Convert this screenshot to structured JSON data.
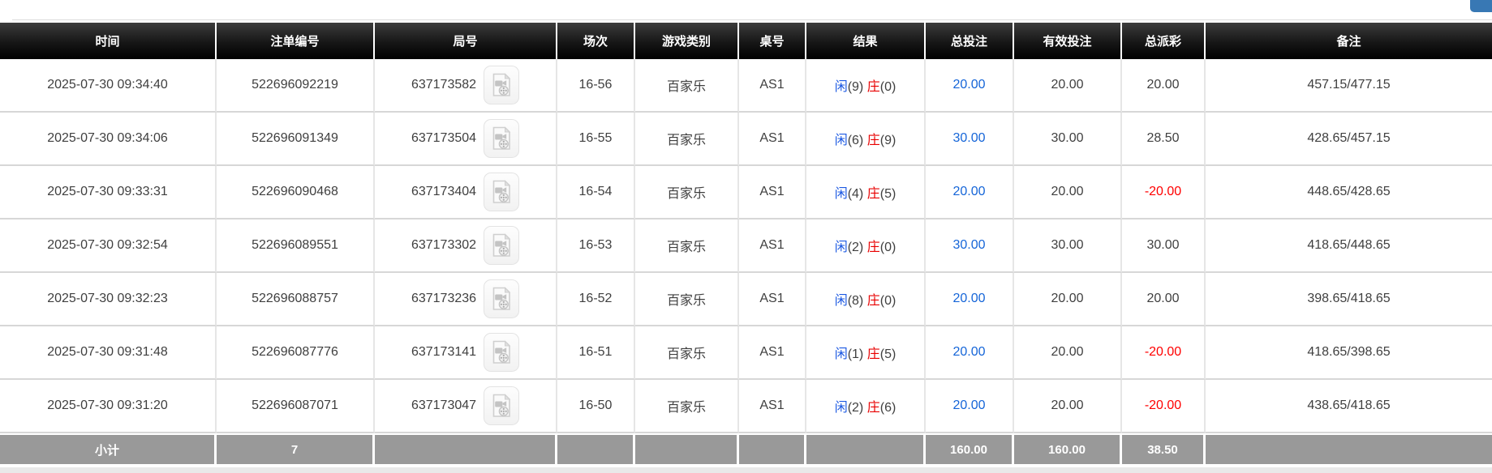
{
  "colors": {
    "player_blue": "#1b58e2",
    "banker_red": "#e80000",
    "total_bet_blue": "#1565d8",
    "negative_red": "#ff0000",
    "footer_bg": "#999999",
    "corner_blue": "#3878b4"
  },
  "icons": {
    "video_replay": "video-file-icon"
  },
  "table": {
    "columns": [
      "时间",
      "注单编号",
      "局号",
      "场次",
      "游戏类别",
      "桌号",
      "结果",
      "总投注",
      "有效投注",
      "总派彩",
      "备注"
    ],
    "result_labels": {
      "player": "闲",
      "banker": "庄"
    },
    "rows": [
      {
        "time": "2025-07-30 09:34:40",
        "bet_id": "522696092219",
        "round_id": "637173582",
        "session": "16-56",
        "game_type": "百家乐",
        "table_no": "AS1",
        "result": {
          "player": "9",
          "banker": "0"
        },
        "total_bet": "20.00",
        "valid_bet": "20.00",
        "payout": "20.00",
        "remark": "457.15/477.15"
      },
      {
        "time": "2025-07-30 09:34:06",
        "bet_id": "522696091349",
        "round_id": "637173504",
        "session": "16-55",
        "game_type": "百家乐",
        "table_no": "AS1",
        "result": {
          "player": "6",
          "banker": "9"
        },
        "total_bet": "30.00",
        "valid_bet": "30.00",
        "payout": "28.50",
        "remark": "428.65/457.15"
      },
      {
        "time": "2025-07-30 09:33:31",
        "bet_id": "522696090468",
        "round_id": "637173404",
        "session": "16-54",
        "game_type": "百家乐",
        "table_no": "AS1",
        "result": {
          "player": "4",
          "banker": "5"
        },
        "total_bet": "20.00",
        "valid_bet": "20.00",
        "payout": "-20.00",
        "remark": "448.65/428.65"
      },
      {
        "time": "2025-07-30 09:32:54",
        "bet_id": "522696089551",
        "round_id": "637173302",
        "session": "16-53",
        "game_type": "百家乐",
        "table_no": "AS1",
        "result": {
          "player": "2",
          "banker": "0"
        },
        "total_bet": "30.00",
        "valid_bet": "30.00",
        "payout": "30.00",
        "remark": "418.65/448.65"
      },
      {
        "time": "2025-07-30 09:32:23",
        "bet_id": "522696088757",
        "round_id": "637173236",
        "session": "16-52",
        "game_type": "百家乐",
        "table_no": "AS1",
        "result": {
          "player": "8",
          "banker": "0"
        },
        "total_bet": "20.00",
        "valid_bet": "20.00",
        "payout": "20.00",
        "remark": "398.65/418.65"
      },
      {
        "time": "2025-07-30 09:31:48",
        "bet_id": "522696087776",
        "round_id": "637173141",
        "session": "16-51",
        "game_type": "百家乐",
        "table_no": "AS1",
        "result": {
          "player": "1",
          "banker": "5"
        },
        "total_bet": "20.00",
        "valid_bet": "20.00",
        "payout": "-20.00",
        "remark": "418.65/398.65"
      },
      {
        "time": "2025-07-30 09:31:20",
        "bet_id": "522696087071",
        "round_id": "637173047",
        "session": "16-50",
        "game_type": "百家乐",
        "table_no": "AS1",
        "result": {
          "player": "2",
          "banker": "6"
        },
        "total_bet": "20.00",
        "valid_bet": "20.00",
        "payout": "-20.00",
        "remark": "438.65/418.65"
      }
    ],
    "footer": {
      "label": "小计",
      "count": "7",
      "total_bet": "160.00",
      "valid_bet": "160.00",
      "payout": "38.50"
    }
  }
}
